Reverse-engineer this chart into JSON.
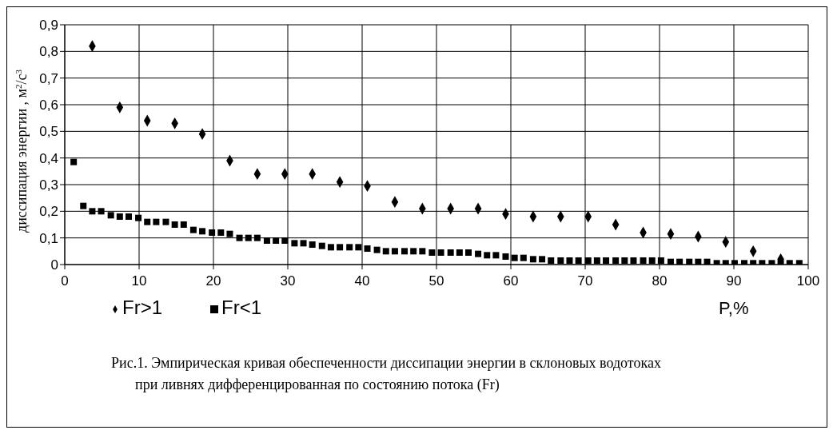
{
  "chart_data": {
    "type": "scatter",
    "xlabel": "P,%",
    "ylabel": "диссипация энергии , м$^{2}$/с$^{3}$",
    "annotations": [
      "Рис.1. Эмпирическая кривая обеспеченности диссипации энергии в склоновых водотоках при ливнях дифференцированная по состоянию потока (Fr)"
    ],
    "series": [
      {
        "name": "Fr>1",
        "color": "#000000",
        "marker": "diamond",
        "x": [
          3.7,
          7.4,
          11.1,
          14.8,
          18.5,
          22.2,
          25.9,
          29.6,
          33.3,
          37,
          40.7,
          44.4,
          48.1,
          51.9,
          55.6,
          59.3,
          63,
          66.7,
          70.4,
          74.1,
          77.8,
          81.5,
          85.2,
          88.9,
          92.6,
          96.3
        ],
        "values": [
          0.82,
          0.59,
          0.54,
          0.53,
          0.49,
          0.39,
          0.34,
          0.34,
          0.34,
          0.31,
          0.295,
          0.235,
          0.21,
          0.21,
          0.21,
          0.19,
          0.18,
          0.18,
          0.18,
          0.15,
          0.12,
          0.115,
          0.105,
          0.085,
          0.05,
          0.02
        ]
      },
      {
        "name": "Fr<1",
        "color": "#000000",
        "marker": "square",
        "x": [
          1.2,
          2.5,
          3.7,
          4.9,
          6.2,
          7.4,
          8.6,
          9.9,
          11.1,
          12.3,
          13.6,
          14.8,
          16,
          17.3,
          18.5,
          19.8,
          21,
          22.2,
          23.5,
          24.7,
          25.9,
          27.2,
          28.4,
          29.6,
          30.9,
          32.1,
          33.3,
          34.6,
          35.8,
          37,
          38.3,
          39.5,
          40.7,
          42,
          43.2,
          44.4,
          45.7,
          46.9,
          48.1,
          49.4,
          50.6,
          51.9,
          53.1,
          54.3,
          55.6,
          56.8,
          58,
          59.3,
          60.5,
          61.7,
          63,
          64.2,
          65.4,
          66.7,
          67.9,
          69.1,
          70.4,
          71.6,
          72.8,
          74.1,
          75.3,
          76.5,
          77.8,
          79,
          80.2,
          81.5,
          82.7,
          84,
          85.2,
          86.4,
          87.7,
          88.9,
          90.1,
          91.4,
          92.6,
          93.8,
          95.1,
          96.3,
          97.5,
          98.8
        ],
        "values": [
          0.385,
          0.22,
          0.2,
          0.2,
          0.185,
          0.18,
          0.18,
          0.175,
          0.16,
          0.16,
          0.16,
          0.15,
          0.15,
          0.13,
          0.125,
          0.12,
          0.12,
          0.115,
          0.1,
          0.1,
          0.1,
          0.09,
          0.09,
          0.09,
          0.08,
          0.08,
          0.075,
          0.07,
          0.065,
          0.065,
          0.065,
          0.065,
          0.06,
          0.055,
          0.05,
          0.05,
          0.05,
          0.05,
          0.05,
          0.045,
          0.045,
          0.045,
          0.045,
          0.045,
          0.04,
          0.035,
          0.035,
          0.03,
          0.025,
          0.025,
          0.02,
          0.02,
          0.015,
          0.015,
          0.015,
          0.015,
          0.015,
          0.015,
          0.015,
          0.015,
          0.015,
          0.015,
          0.015,
          0.015,
          0.015,
          0.01,
          0.01,
          0.01,
          0.01,
          0.01,
          0.005,
          0.005,
          0.005,
          0.005,
          0.005,
          0.005,
          0.005,
          0.005,
          0.005,
          0.005
        ]
      }
    ],
    "xlim": [
      0,
      100
    ],
    "xticks": [
      0,
      10,
      20,
      30,
      40,
      50,
      60,
      70,
      80,
      90,
      100
    ],
    "ylim": [
      0,
      0.9
    ],
    "yticks": [
      0,
      {
        "value": 0.1,
        "label": "0,1"
      },
      {
        "value": 0.2,
        "label": "0,2"
      },
      {
        "value": 0.3,
        "label": "0,3"
      },
      {
        "value": 0.4,
        "label": "0,4"
      },
      {
        "value": 0.5,
        "label": "0,5"
      },
      {
        "value": 0.6,
        "label": "0,6"
      },
      {
        "value": 0.7,
        "label": "0,7"
      },
      {
        "value": 0.8,
        "label": "0,8"
      },
      {
        "value": 0.9,
        "label": "0,9"
      }
    ],
    "grid": true,
    "legend": "bottom left"
  }
}
